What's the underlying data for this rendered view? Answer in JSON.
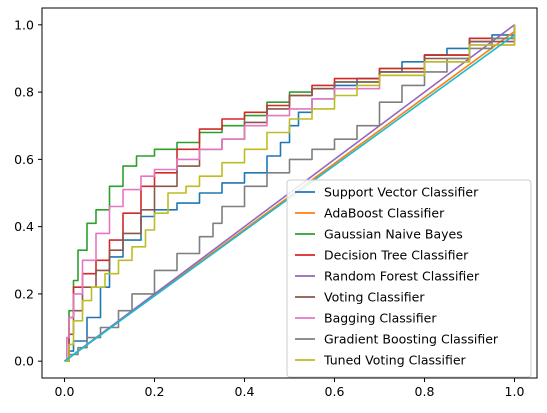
{
  "chart_data": {
    "type": "line",
    "title": "",
    "xlabel": "",
    "ylabel": "",
    "xlim": [
      -0.05,
      1.05
    ],
    "ylim": [
      -0.05,
      1.05
    ],
    "xticks": [
      0.0,
      0.2,
      0.4,
      0.6,
      0.8,
      1.0
    ],
    "xtick_labels": [
      "0.0",
      "0.2",
      "0.4",
      "0.6",
      "0.8",
      "1.0"
    ],
    "yticks": [
      0.0,
      0.2,
      0.4,
      0.6,
      0.8,
      1.0
    ],
    "ytick_labels": [
      "0.0",
      "0.2",
      "0.4",
      "0.6",
      "0.8",
      "1.0"
    ],
    "grid": false,
    "legend_position": "lower-right",
    "series": [
      {
        "name": "Support Vector Classifier",
        "color": "#1f77b4",
        "x": [
          0,
          0.01,
          0.02,
          0.05,
          0.08,
          0.1,
          0.13,
          0.17,
          0.2,
          0.25,
          0.3,
          0.35,
          0.4,
          0.45,
          0.48,
          0.5,
          0.52,
          0.55,
          0.6,
          0.65,
          0.7,
          0.75,
          0.8,
          0.85,
          0.9,
          0.95,
          1.0
        ],
        "y": [
          0,
          0.03,
          0.06,
          0.13,
          0.22,
          0.31,
          0.36,
          0.43,
          0.45,
          0.47,
          0.5,
          0.53,
          0.56,
          0.61,
          0.65,
          0.7,
          0.74,
          0.78,
          0.82,
          0.84,
          0.86,
          0.89,
          0.91,
          0.93,
          0.95,
          0.97,
          1.0
        ]
      },
      {
        "name": "AdaBoost Classifier",
        "color": "#ff7f0e",
        "x": [
          0,
          1.0
        ],
        "y": [
          0,
          0.98
        ]
      },
      {
        "name": "Gaussian Naive Bayes",
        "color": "#2ca02c",
        "x": [
          0,
          0.005,
          0.01,
          0.02,
          0.03,
          0.05,
          0.07,
          0.1,
          0.13,
          0.16,
          0.2,
          0.25,
          0.3,
          0.35,
          0.4,
          0.45,
          0.5,
          0.55,
          0.6,
          0.7,
          0.8,
          0.9,
          1.0
        ],
        "y": [
          0,
          0.07,
          0.15,
          0.24,
          0.33,
          0.41,
          0.45,
          0.52,
          0.58,
          0.61,
          0.63,
          0.65,
          0.68,
          0.7,
          0.73,
          0.77,
          0.8,
          0.81,
          0.83,
          0.87,
          0.91,
          0.96,
          1.0
        ]
      },
      {
        "name": "Decision Tree Classifier",
        "color": "#d62728",
        "x": [
          0,
          0.01,
          0.02,
          0.04,
          0.07,
          0.1,
          0.13,
          0.17,
          0.2,
          0.25,
          0.3,
          0.35,
          0.4,
          0.45,
          0.5,
          0.55,
          0.6,
          0.7,
          0.8,
          0.9,
          1.0
        ],
        "y": [
          0,
          0.13,
          0.22,
          0.26,
          0.3,
          0.36,
          0.44,
          0.52,
          0.56,
          0.63,
          0.69,
          0.72,
          0.74,
          0.76,
          0.79,
          0.82,
          0.84,
          0.87,
          0.91,
          0.96,
          1.0
        ]
      },
      {
        "name": "Random Forest Classifier",
        "color": "#9467bd",
        "x": [
          0,
          1.0
        ],
        "y": [
          0,
          1.0
        ]
      },
      {
        "name": "Voting Classifier",
        "color": "#8c564b",
        "x": [
          0,
          0.01,
          0.02,
          0.04,
          0.07,
          0.1,
          0.13,
          0.17,
          0.2,
          0.25,
          0.3,
          0.35,
          0.4,
          0.45,
          0.5,
          0.55,
          0.6,
          0.7,
          0.8,
          0.9,
          1.0
        ],
        "y": [
          0,
          0.08,
          0.15,
          0.22,
          0.27,
          0.33,
          0.38,
          0.45,
          0.52,
          0.58,
          0.63,
          0.66,
          0.71,
          0.75,
          0.79,
          0.81,
          0.83,
          0.86,
          0.9,
          0.95,
          1.0
        ]
      },
      {
        "name": "Bagging Classifier",
        "color": "#e377c2",
        "x": [
          0,
          0.005,
          0.01,
          0.02,
          0.04,
          0.07,
          0.1,
          0.13,
          0.17,
          0.2,
          0.25,
          0.3,
          0.35,
          0.4,
          0.45,
          0.5,
          0.55,
          0.6,
          0.7,
          0.8,
          0.9,
          1.0
        ],
        "y": [
          0,
          0.07,
          0.13,
          0.2,
          0.3,
          0.38,
          0.46,
          0.51,
          0.55,
          0.57,
          0.6,
          0.63,
          0.66,
          0.7,
          0.73,
          0.75,
          0.78,
          0.81,
          0.85,
          0.89,
          0.94,
          1.0
        ]
      },
      {
        "name": "Gradient Boosting Classifier",
        "color": "#7f7f7f",
        "x": [
          0,
          0.01,
          0.03,
          0.05,
          0.08,
          0.12,
          0.15,
          0.2,
          0.25,
          0.3,
          0.33,
          0.35,
          0.4,
          0.45,
          0.5,
          0.55,
          0.6,
          0.65,
          0.7,
          0.75,
          0.8,
          0.85,
          0.9,
          0.95,
          1.0
        ],
        "y": [
          0,
          0.02,
          0.04,
          0.07,
          0.1,
          0.15,
          0.2,
          0.27,
          0.32,
          0.37,
          0.41,
          0.46,
          0.52,
          0.56,
          0.6,
          0.63,
          0.66,
          0.7,
          0.77,
          0.82,
          0.86,
          0.9,
          0.93,
          0.96,
          1.0
        ]
      },
      {
        "name": "Tuned Voting Classifier",
        "color": "#bcbd22",
        "x": [
          0,
          0.01,
          0.02,
          0.04,
          0.06,
          0.09,
          0.12,
          0.15,
          0.18,
          0.2,
          0.23,
          0.27,
          0.3,
          0.35,
          0.4,
          0.45,
          0.5,
          0.55,
          0.6,
          0.65,
          0.7,
          0.8,
          0.9,
          1.0
        ],
        "y": [
          0,
          0.05,
          0.12,
          0.18,
          0.22,
          0.26,
          0.3,
          0.34,
          0.39,
          0.44,
          0.5,
          0.52,
          0.55,
          0.59,
          0.63,
          0.68,
          0.72,
          0.75,
          0.79,
          0.82,
          0.85,
          0.89,
          0.94,
          1.0
        ]
      },
      {
        "name": "",
        "color": "#17becf",
        "x": [
          0,
          1.0
        ],
        "y": [
          0,
          0.97
        ]
      }
    ]
  }
}
